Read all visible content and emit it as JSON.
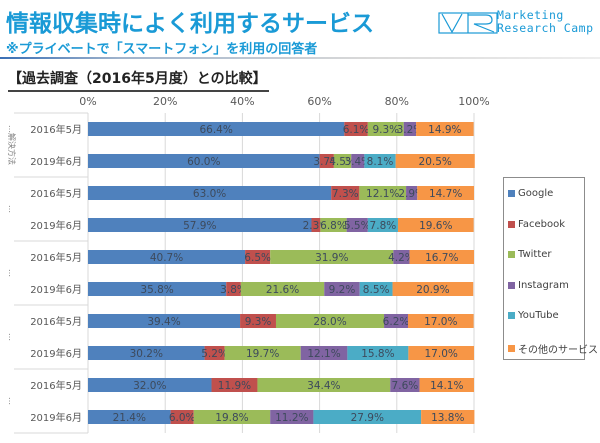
{
  "header": {
    "title": "情報収集時によく利用するサービス",
    "subtitle": "※プライベートで「スマートフォン」を利用の回答者",
    "section_heading": "【過去調査（2016年5月度）との比較】",
    "logo_icon": "mrc-logo-icon",
    "logo_line1": "Marketing",
    "logo_line2": "Research Camp"
  },
  "colors": {
    "brand": "#1a9ad6",
    "Google": "#4F81BD",
    "Facebook": "#C0504D",
    "Twitter": "#9BBB59",
    "Instagram": "#8064A2",
    "YouTube": "#4BACC6",
    "その他のサービス": "#F79646"
  },
  "chart_data": {
    "type": "bar",
    "orientation": "horizontal-stacked-100",
    "title": "【過去調査（2016年5月度）との比較】",
    "xlabel": "",
    "ylabel": "",
    "xlim": [
      0,
      100
    ],
    "x_ticks": [
      "0%",
      "20%",
      "40%",
      "60%",
      "80%",
      "100%"
    ],
    "grid": true,
    "legend_position": "right",
    "groups": [
      {
        "label": "…解決方法"
      },
      {
        "label": "…"
      },
      {
        "label": "…"
      },
      {
        "label": "…"
      },
      {
        "label": "…"
      }
    ],
    "categories": [
      "2016年5月",
      "2019年6月",
      "2016年5月",
      "2019年6月",
      "2016年5月",
      "2019年6月",
      "2016年5月",
      "2019年6月",
      "2016年5月",
      "2019年6月"
    ],
    "series": [
      {
        "name": "Google",
        "values": [
          66.4,
          60.0,
          63.0,
          57.9,
          40.7,
          35.8,
          39.4,
          30.2,
          32.0,
          21.4
        ]
      },
      {
        "name": "Facebook",
        "values": [
          6.1,
          3.7,
          7.3,
          2.3,
          6.5,
          3.8,
          9.3,
          5.2,
          11.9,
          6.0
        ]
      },
      {
        "name": "Twitter",
        "values": [
          9.3,
          4.5,
          12.1,
          6.8,
          31.9,
          21.6,
          28.0,
          19.7,
          34.4,
          19.8
        ]
      },
      {
        "name": "Instagram",
        "values": [
          3.2,
          3.4,
          2.9,
          5.5,
          4.2,
          9.2,
          6.2,
          12.1,
          7.6,
          11.2
        ]
      },
      {
        "name": "YouTube",
        "values": [
          0,
          8.1,
          0,
          7.8,
          0,
          8.5,
          0,
          15.8,
          0,
          27.9
        ]
      },
      {
        "name": "その他のサービス",
        "values": [
          14.9,
          20.5,
          14.7,
          19.6,
          16.7,
          20.9,
          17.0,
          17.0,
          14.1,
          13.8
        ]
      }
    ]
  }
}
